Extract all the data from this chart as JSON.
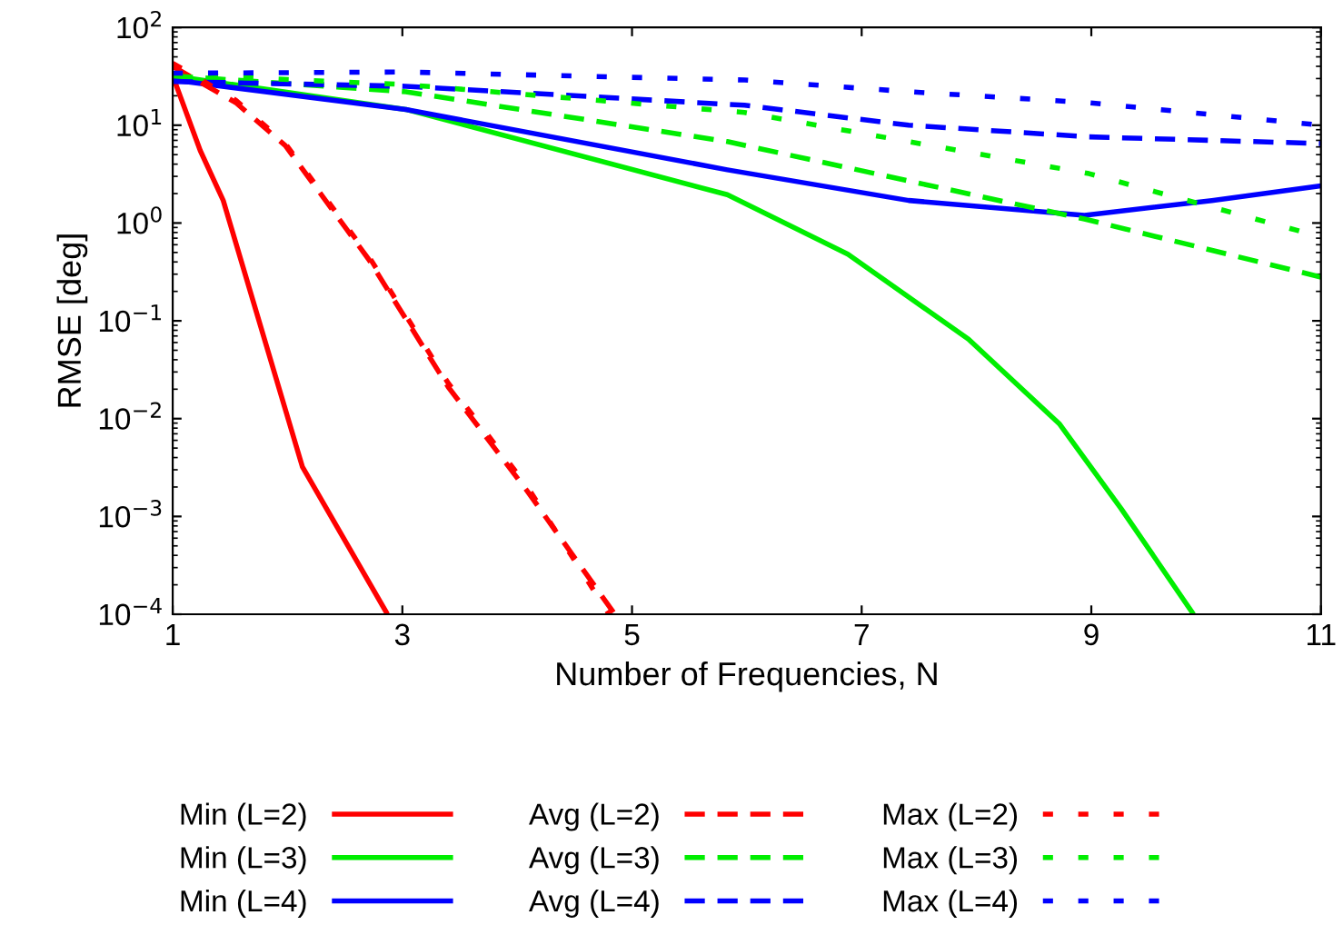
{
  "chart_data": {
    "type": "line",
    "xlabel": "Number of Frequencies, N",
    "ylabel": "RMSE [deg]",
    "log": "y",
    "xlim": [
      1,
      11
    ],
    "xticks": [
      1,
      3,
      5,
      7,
      9,
      11
    ],
    "ylim": [
      0.0001,
      100
    ],
    "yticks": [
      {
        "value": 0.0001,
        "label": "10$^{−4}$"
      },
      {
        "value": 0.001,
        "label": "10$^{−3}$"
      },
      {
        "value": 0.01,
        "label": "10$^{−2}$"
      },
      {
        "value": 0.1,
        "label": "10$^{−1}$"
      },
      {
        "value": 1,
        "label": "10$^{0}$"
      },
      {
        "value": 10,
        "label": "10$^{1}$"
      },
      {
        "value": 100,
        "label": "10$^{2}$"
      }
    ],
    "grid": false,
    "legend": "bottom",
    "series": [
      {
        "name": "Min (L=2)",
        "color": "#ff0000",
        "line_style": "solid",
        "x": [
          1,
          1.24,
          1.44,
          2.13,
          2.87
        ],
        "values": [
          32,
          5.5,
          1.7,
          0.0032,
          0.0001
        ]
      },
      {
        "name": "Min (L=3)",
        "color": "#00ee00",
        "line_style": "solid",
        "x": [
          1,
          3.03,
          5.83,
          6.88,
          7.93,
          8.72,
          9.26,
          9.89
        ],
        "values": [
          32,
          14.5,
          1.95,
          0.48,
          0.065,
          0.0089,
          0.0012,
          0.0001
        ]
      },
      {
        "name": "Min (L=4)",
        "color": "#0000ff",
        "line_style": "solid",
        "x": [
          1,
          3.03,
          5.83,
          7.41,
          8.94,
          10.05,
          11
        ],
        "values": [
          29,
          14.5,
          3.5,
          1.7,
          1.2,
          1.7,
          2.4
        ]
      },
      {
        "name": "Avg (L=2)",
        "color": "#ff0000",
        "line_style": "dashed",
        "x": [
          1,
          1.55,
          1.98,
          2.71,
          3.4,
          4.09,
          4.85
        ],
        "values": [
          40,
          17,
          6.2,
          0.42,
          0.021,
          0.0018,
          0.0001
        ]
      },
      {
        "name": "Avg (L=3)",
        "color": "#00ee00",
        "line_style": "dashed",
        "x": [
          1,
          3.03,
          5.83,
          8.94,
          11
        ],
        "values": [
          32,
          22,
          6.8,
          1.1,
          0.28
        ]
      },
      {
        "name": "Avg (L=4)",
        "color": "#0000ff",
        "line_style": "dashed",
        "x": [
          1,
          3.03,
          5.98,
          7.41,
          8.98,
          11
        ],
        "values": [
          28,
          25,
          16,
          10,
          7.6,
          6.5
        ]
      },
      {
        "name": "Max (L=2)",
        "color": "#ff0000",
        "line_style": "dotted",
        "x": [
          1,
          1.55,
          1.98,
          2.71,
          3.4,
          4.09,
          4.8
        ],
        "values": [
          43,
          18,
          6.5,
          0.45,
          0.023,
          0.002,
          0.0001
        ]
      },
      {
        "name": "Max (L=3)",
        "color": "#00ee00",
        "line_style": "dotted",
        "x": [
          1,
          3.03,
          5.98,
          7.41,
          8.98,
          10.86
        ],
        "values": [
          33,
          26,
          13.5,
          6.8,
          3.2,
          0.8
        ]
      },
      {
        "name": "Max (L=4)",
        "color": "#0000ff",
        "line_style": "dotted",
        "x": [
          1,
          3.03,
          5.98,
          7.41,
          8.98,
          11
        ],
        "values": [
          34,
          35,
          29,
          22,
          17,
          10
        ]
      }
    ]
  }
}
